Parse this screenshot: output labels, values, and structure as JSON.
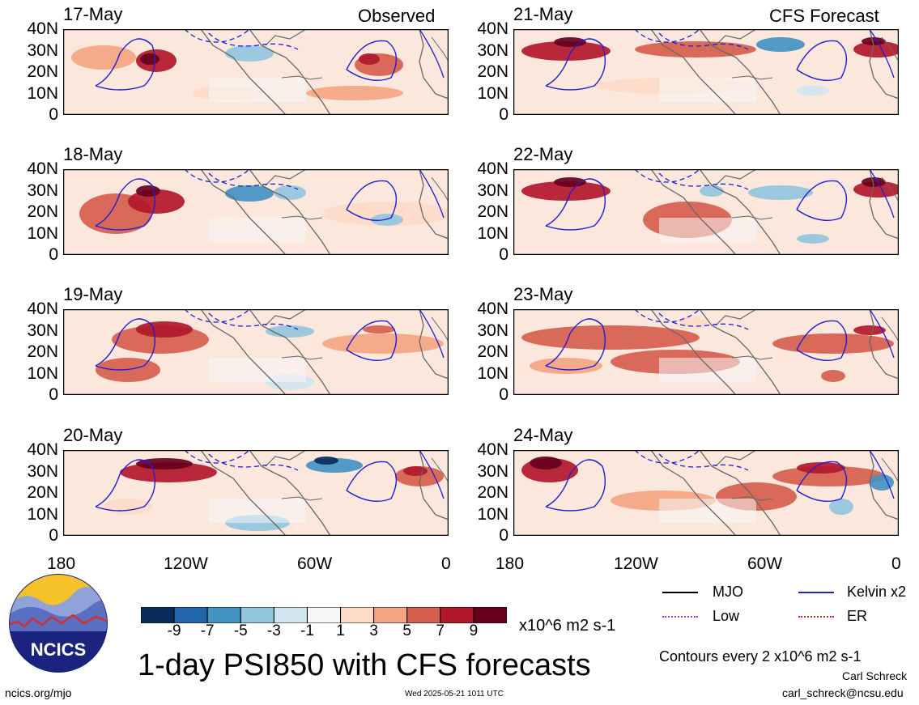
{
  "panels": {
    "left": [
      {
        "date": "17-May"
      },
      {
        "date": "18-May"
      },
      {
        "date": "19-May"
      },
      {
        "date": "20-May"
      }
    ],
    "right": [
      {
        "date": "21-May"
      },
      {
        "date": "22-May"
      },
      {
        "date": "23-May"
      },
      {
        "date": "24-May"
      }
    ]
  },
  "column_headers": {
    "left": "Observed",
    "right": "CFS Forecast"
  },
  "lat_ticks": [
    "40N",
    "30N",
    "20N",
    "10N",
    "0"
  ],
  "lon_ticks": [
    "180",
    "120W",
    "60W",
    "0"
  ],
  "colorbar": {
    "labels": [
      "-9",
      "-7",
      "-5",
      "-3",
      "-1",
      "1",
      "3",
      "5",
      "7",
      "9"
    ],
    "colors": [
      "#0b2b5c",
      "#2166ac",
      "#4393c3",
      "#92c5de",
      "#d1e5f0",
      "#f7f7f7",
      "#fddbc7",
      "#f4a582",
      "#d6604d",
      "#b2182b",
      "#67001f"
    ],
    "units": "x10^6 m2 s-1"
  },
  "legend": {
    "items": [
      {
        "label": "MJO",
        "color": "#000000"
      },
      {
        "label": "Kelvin x2",
        "color": "#1f1fd6"
      },
      {
        "label": "Low",
        "color": "#9b3fd6"
      },
      {
        "label": "ER",
        "color": "#d62020"
      }
    ],
    "contour_note": "Contours every 2 x10^6 m2 s-1"
  },
  "title": "1-day PSI850 with CFS forecasts",
  "logo_text": "NCICS",
  "footer": {
    "url": "ncics.org/mjo",
    "timestamp": "Wed 2025-05-21 1011 UTC",
    "author": "Carl Schreck",
    "email": "carl_schreck@ncsu.edu"
  }
}
